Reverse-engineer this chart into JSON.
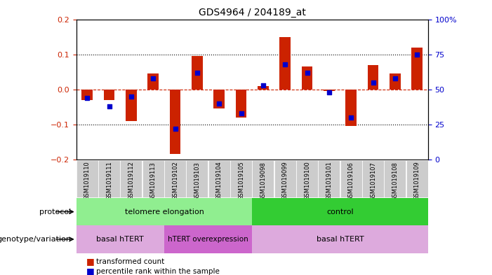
{
  "title": "GDS4964 / 204189_at",
  "samples": [
    "GSM1019110",
    "GSM1019111",
    "GSM1019112",
    "GSM1019113",
    "GSM1019102",
    "GSM1019103",
    "GSM1019104",
    "GSM1019105",
    "GSM1019098",
    "GSM1019099",
    "GSM1019100",
    "GSM1019101",
    "GSM1019106",
    "GSM1019107",
    "GSM1019108",
    "GSM1019109"
  ],
  "bar_values": [
    -0.03,
    -0.03,
    -0.09,
    0.045,
    -0.185,
    0.095,
    -0.055,
    -0.08,
    0.01,
    0.15,
    0.065,
    -0.005,
    -0.105,
    0.07,
    0.045,
    0.12
  ],
  "percentile_values": [
    44,
    38,
    45,
    58,
    22,
    62,
    40,
    33,
    53,
    68,
    62,
    48,
    30,
    55,
    58,
    75
  ],
  "ylim": [
    -0.2,
    0.2
  ],
  "yticks_left": [
    -0.2,
    -0.1,
    0.0,
    0.1,
    0.2
  ],
  "yticks_right": [
    0,
    25,
    50,
    75,
    100
  ],
  "bar_color": "#cc2200",
  "percentile_color": "#0000cc",
  "zero_line_color": "#cc2200",
  "dotted_line_color": "#000000",
  "protocol_telomere": {
    "label": "telomere elongation",
    "start": 0,
    "end": 8,
    "color": "#90ee90"
  },
  "protocol_control": {
    "label": "control",
    "start": 8,
    "end": 16,
    "color": "#33cc33"
  },
  "genotype_basal1": {
    "label": "basal hTERT",
    "start": 0,
    "end": 4,
    "color": "#ddaadd"
  },
  "genotype_hTERT": {
    "label": "hTERT overexpression",
    "start": 4,
    "end": 8,
    "color": "#cc66cc"
  },
  "genotype_basal2": {
    "label": "basal hTERT",
    "start": 8,
    "end": 16,
    "color": "#ddaadd"
  },
  "protocol_label": "protocol",
  "genotype_label": "genotype/variation",
  "legend_bar": "transformed count",
  "legend_pct": "percentile rank within the sample",
  "background_color": "#ffffff",
  "sample_bg_color": "#cccccc"
}
